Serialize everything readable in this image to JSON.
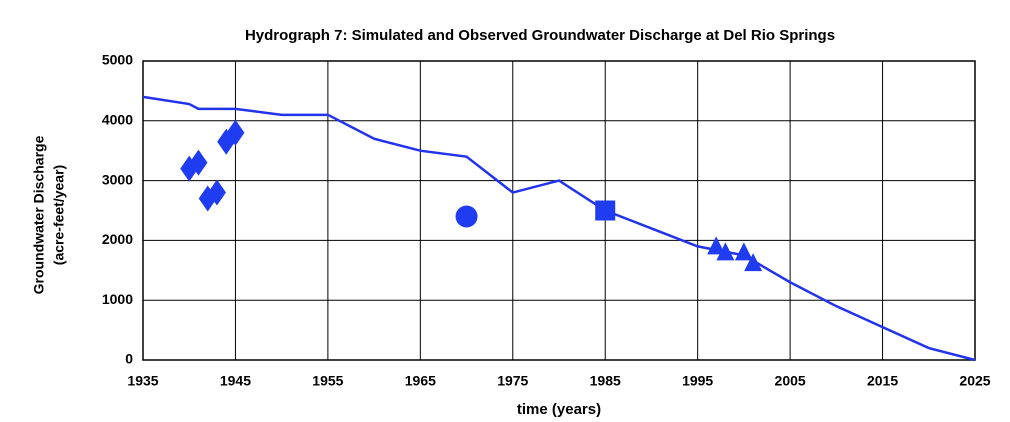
{
  "chart_data": {
    "type": "line",
    "title": "Hydrograph 7: Simulated and Observed Groundwater Discharge at Del Rio Springs",
    "x_label": "time (years)",
    "y_label": [
      "Groundwater Discharge",
      "(acre-feet/year)"
    ],
    "xlim": [
      1935,
      2025
    ],
    "xticks": [
      1935,
      1945,
      1955,
      1965,
      1975,
      1985,
      1995,
      2005,
      2015,
      2025
    ],
    "ylim": [
      0,
      5000
    ],
    "yticks": [
      0,
      1000,
      2000,
      3000,
      4000,
      5000
    ],
    "grid": true,
    "series": [
      {
        "marker": "line",
        "color": "#2233ee",
        "x": [
          1935,
          1940,
          1941,
          1942,
          1943,
          1944,
          1945,
          1950,
          1955,
          1960,
          1965,
          1970,
          1975,
          1980,
          1985,
          1990,
          1995,
          2000,
          2005,
          2010,
          2015,
          2020,
          2025
        ],
        "values": [
          4400,
          4280,
          4200,
          4200,
          4200,
          4200,
          4200,
          4100,
          4100,
          3700,
          3500,
          3400,
          2800,
          3000,
          2500,
          2200,
          1900,
          1750,
          1300,
          900,
          550,
          200,
          0
        ]
      },
      {
        "marker": "diamond",
        "color": "#1f3cf0",
        "x": [
          1940,
          1941,
          1942,
          1943,
          1944,
          1945
        ],
        "values": [
          3200,
          3300,
          2700,
          2800,
          3650,
          3800
        ]
      },
      {
        "marker": "circle",
        "color": "#1f3cf0",
        "x": [
          1970
        ],
        "values": [
          2400
        ]
      },
      {
        "marker": "square",
        "color": "#1f3cf0",
        "x": [
          1985
        ],
        "values": [
          2500
        ]
      },
      {
        "marker": "triangle",
        "color": "#1f3cf0",
        "x": [
          1997,
          1998,
          2000,
          2001
        ],
        "values": [
          1900,
          1800,
          1800,
          1620
        ]
      }
    ]
  }
}
